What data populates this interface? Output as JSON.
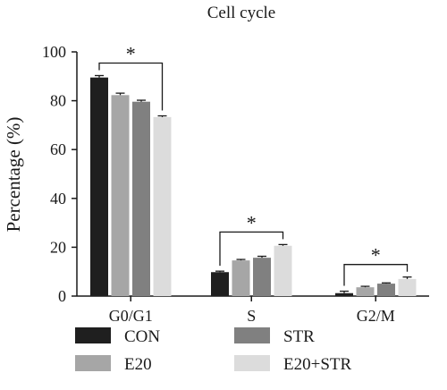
{
  "chart_data": {
    "type": "bar",
    "title": "Cell cycle",
    "xlabel": "",
    "ylabel": "Percentage (%)",
    "ylim": [
      0,
      100
    ],
    "yticks": [
      "0",
      "20",
      "40",
      "60",
      "80",
      "100"
    ],
    "categories": [
      "G0/G1",
      "S",
      "G2/M"
    ],
    "grid": false,
    "legend_position": "bottom",
    "series": [
      {
        "name": "CON",
        "color": "#1f1f1f",
        "values": [
          89.5,
          9.8,
          1.2
        ],
        "errors": [
          0.8,
          0.4,
          0.8
        ]
      },
      {
        "name": "E20",
        "color": "#a6a6a6",
        "values": [
          82.3,
          14.6,
          3.6
        ],
        "errors": [
          0.8,
          0.4,
          0.4
        ]
      },
      {
        "name": "STR",
        "color": "#808080",
        "values": [
          79.6,
          15.7,
          5.1
        ],
        "errors": [
          0.6,
          0.6,
          0.3
        ]
      },
      {
        "name": "E20+STR",
        "color": "#dcdcdc",
        "values": [
          73.3,
          20.6,
          7.0
        ],
        "errors": [
          0.5,
          0.5,
          0.8
        ]
      }
    ],
    "annotations": [
      {
        "group": "G0/G1",
        "text": "*"
      },
      {
        "group": "S",
        "text": "*"
      },
      {
        "group": "G2/M",
        "text": "*"
      }
    ]
  }
}
